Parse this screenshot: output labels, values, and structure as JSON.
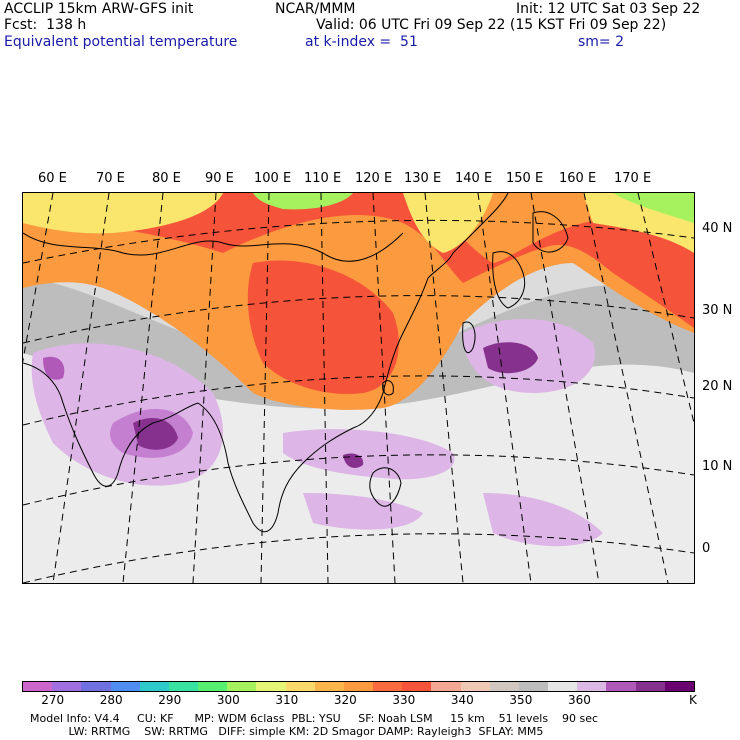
{
  "header": {
    "model_title": "ACCLIP 15km ARW-GFS init",
    "center": "NCAR/MMM",
    "init": "Init: 12 UTC Sat 03 Sep 22",
    "fcst": "Fcst:  138 h",
    "valid": "Valid: 06 UTC Fri 09 Sep 22 (15 KST Fri 09 Sep 22)",
    "field": "Equivalent potential temperature",
    "k_index": "at k-index =  51",
    "smoothing": "sm= 2"
  },
  "map": {
    "lon_labels": [
      "60 E",
      "70 E",
      "80 E",
      "90 E",
      "100 E",
      "110 E",
      "120 E",
      "130 E",
      "140 E",
      "150 E",
      "160 E",
      "170 E"
    ],
    "lat_labels": [
      "40 N",
      "30 N",
      "20 N",
      "10 N",
      "0"
    ],
    "colors": {
      "ocean_high": "#dcdcdc",
      "subtropics": "#bdbdbd",
      "warm_orange": "#fb9a3f",
      "hot_red": "#f6543a",
      "cool_yellow": "#fae56d",
      "light_green": "#a6f25e",
      "lilac": "#ddb5e6",
      "purple": "#c47fd0",
      "dark_purple": "#87318f",
      "coast": "#000000"
    }
  },
  "colorbar": {
    "colors": [
      "#cc66cc",
      "#a070e0",
      "#7070e0",
      "#4f8ef0",
      "#2ec9c9",
      "#39e2a0",
      "#56ef72",
      "#a6f25e",
      "#e5f575",
      "#fbd96a",
      "#fbb54b",
      "#fb9a3f",
      "#f96b3e",
      "#f6543a",
      "#f4a893",
      "#f0c9b4",
      "#d0c8c0",
      "#bdbdbd",
      "#e6e6e6",
      "#dcb8e4",
      "#b159b9",
      "#87318f",
      "#6a006f"
    ],
    "tick_labels": [
      "270",
      "280",
      "290",
      "300",
      "310",
      "320",
      "330",
      "340",
      "350",
      "360",
      "K"
    ]
  },
  "footer": {
    "line1": "Model Info: V4.4     CU: KF      MP: WDM 6class  PBL: YSU     SF: Noah LSM     15 km    51 levels    90 sec",
    "line2": "           LW: RRTMG    SW: RRTMG   DIFF: simple KM: 2D Smagor DAMP: Rayleigh3  SFLAY: MM5"
  }
}
